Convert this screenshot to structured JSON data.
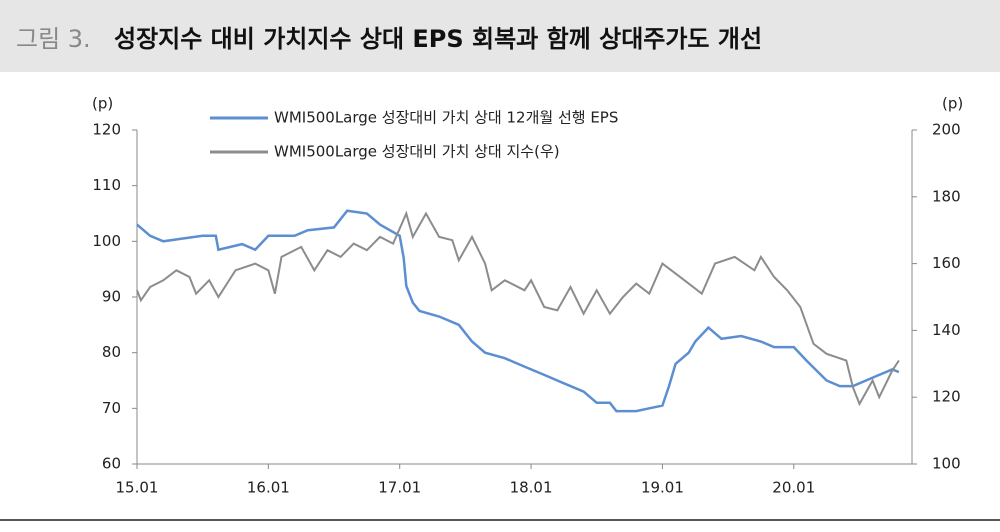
{
  "header": {
    "figure_label": "그림 3.",
    "title": "성장지수 대비 가치지수 상대 EPS 회복과 함께 상대주가도 개선"
  },
  "chart_data": {
    "type": "line",
    "y_label": "(p)",
    "y2_label": "(p)",
    "xlim": [
      2015.0,
      2020.9
    ],
    "xticks": [
      {
        "value": 2015,
        "label": "15.01"
      },
      {
        "value": 2016,
        "label": "16.01"
      },
      {
        "value": 2017,
        "label": "17.01"
      },
      {
        "value": 2018,
        "label": "18.01"
      },
      {
        "value": 2019,
        "label": "19.01"
      },
      {
        "value": 2020,
        "label": "20.01"
      }
    ],
    "ylim": [
      60,
      120
    ],
    "yticks": [
      60,
      70,
      80,
      90,
      100,
      110,
      120
    ],
    "y2lim": [
      100,
      200
    ],
    "y2ticks": [
      100,
      120,
      140,
      160,
      180,
      200
    ],
    "grid": false,
    "series": [
      {
        "name": "WMI500Large 성장대비 가치 상대 12개월 선행 EPS",
        "color": "#5b8fd1",
        "axis": "y",
        "x": [
          2015.0,
          2015.1,
          2015.2,
          2015.35,
          2015.5,
          2015.6,
          2015.62,
          2015.8,
          2015.9,
          2016.0,
          2016.1,
          2016.2,
          2016.3,
          2016.5,
          2016.6,
          2016.75,
          2016.85,
          2017.0,
          2017.03,
          2017.05,
          2017.1,
          2017.15,
          2017.3,
          2017.45,
          2017.55,
          2017.65,
          2017.8,
          2017.95,
          2018.1,
          2018.25,
          2018.4,
          2018.5,
          2018.6,
          2018.65,
          2018.8,
          2018.9,
          2019.0,
          2019.05,
          2019.1,
          2019.2,
          2019.25,
          2019.35,
          2019.45,
          2019.6,
          2019.75,
          2019.85,
          2020.0,
          2020.1,
          2020.25,
          2020.35,
          2020.45,
          2020.55,
          2020.65,
          2020.75,
          2020.8
        ],
        "values": [
          103,
          101,
          100,
          100.5,
          101,
          101,
          98.5,
          99.5,
          98.5,
          101,
          101,
          101,
          102,
          102.5,
          105.5,
          105,
          103,
          101,
          97,
          92,
          89,
          87.5,
          86.5,
          85,
          82,
          80,
          79,
          77.5,
          76,
          74.5,
          73,
          71,
          71,
          69.5,
          69.5,
          70,
          70.5,
          74,
          78,
          80,
          82,
          84.5,
          82.5,
          83,
          82,
          81,
          81,
          78.5,
          75,
          74,
          74,
          75,
          76,
          77,
          76.5
        ]
      },
      {
        "name": "WMI500Large 성장대비 가치 상대 지수(우)",
        "color": "#8c8c8c",
        "axis": "y2",
        "x": [
          2015.0,
          2015.03,
          2015.1,
          2015.2,
          2015.3,
          2015.4,
          2015.45,
          2015.55,
          2015.62,
          2015.75,
          2015.9,
          2016.0,
          2016.05,
          2016.1,
          2016.25,
          2016.35,
          2016.45,
          2016.55,
          2016.65,
          2016.75,
          2016.85,
          2016.95,
          2017.05,
          2017.1,
          2017.2,
          2017.3,
          2017.4,
          2017.45,
          2017.55,
          2017.65,
          2017.7,
          2017.8,
          2017.95,
          2018.0,
          2018.1,
          2018.2,
          2018.3,
          2018.4,
          2018.5,
          2018.6,
          2018.7,
          2018.8,
          2018.9,
          2019.0,
          2019.1,
          2019.2,
          2019.3,
          2019.4,
          2019.55,
          2019.7,
          2019.75,
          2019.85,
          2019.95,
          2020.05,
          2020.15,
          2020.25,
          2020.4,
          2020.45,
          2020.5,
          2020.6,
          2020.65,
          2020.75,
          2020.8
        ],
        "values": [
          152,
          149,
          153,
          155,
          158,
          156,
          151,
          155,
          150,
          158,
          160,
          158,
          151,
          162,
          165,
          158,
          164,
          162,
          166,
          164,
          168,
          166,
          175,
          168,
          175,
          168,
          167,
          161,
          168,
          160,
          152,
          155,
          152,
          155,
          147,
          146,
          153,
          145,
          152,
          145,
          150,
          154,
          151,
          160,
          157,
          154,
          151,
          160,
          162,
          158,
          162,
          156,
          152,
          147,
          136,
          133,
          131,
          123,
          118,
          125,
          120,
          128,
          131
        ]
      }
    ]
  }
}
